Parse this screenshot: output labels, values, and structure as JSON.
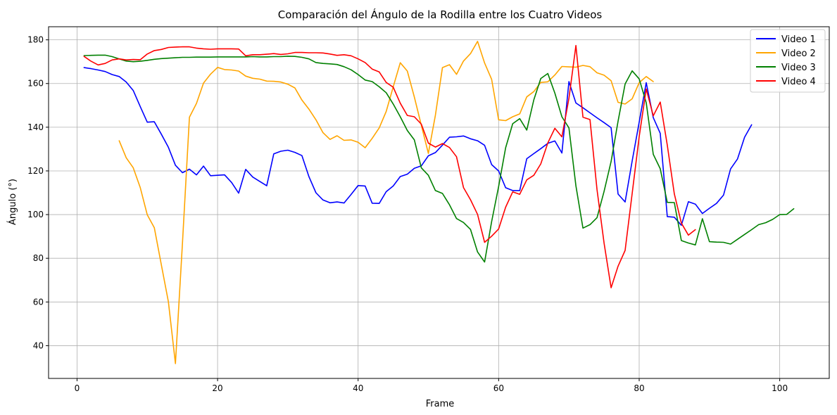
{
  "chart_data": {
    "type": "line",
    "title": "Comparación del Ángulo de la Rodilla entre los Cuatro Videos",
    "xlabel": "Frame",
    "ylabel": "Ángulo (°)",
    "xlim": [
      -4.05,
      107.05
    ],
    "ylim": [
      25,
      186
    ],
    "xticks": [
      "0",
      "20",
      "40",
      "60",
      "80",
      "100"
    ],
    "yticks": [
      "40",
      "60",
      "80",
      "100",
      "120",
      "140",
      "160",
      "180"
    ],
    "grid": true,
    "legend": "top-right",
    "series": [
      {
        "name": "Video 1",
        "color": "#0000ff",
        "x": [
          1,
          2,
          3,
          4,
          5,
          6,
          7,
          8,
          9,
          10,
          11,
          12,
          13,
          14,
          15,
          16,
          17,
          18,
          19,
          20,
          21,
          22,
          23,
          24,
          25,
          26,
          27,
          28,
          29,
          30,
          31,
          32,
          33,
          34,
          35,
          36,
          37,
          38,
          39,
          40,
          41,
          42,
          43,
          44,
          45,
          46,
          47,
          48,
          49,
          50,
          51,
          52,
          53,
          54,
          55,
          56,
          57,
          58,
          59,
          60,
          61,
          62,
          63,
          64,
          65,
          66,
          67,
          68,
          69,
          70,
          71,
          72,
          73,
          74,
          75,
          76,
          77,
          78,
          79,
          80,
          81,
          82,
          83,
          84,
          85,
          86,
          87,
          88,
          89,
          90,
          91,
          92,
          93,
          94,
          95,
          96
        ],
        "y": [
          167.3,
          166.8,
          166.2,
          165.5,
          164.1,
          163.2,
          160.7,
          156.8,
          149.4,
          142.3,
          142.5,
          136.8,
          130.8,
          122.6,
          119.2,
          120.8,
          118.2,
          122.2,
          117.8,
          118,
          118.2,
          114.7,
          109.8,
          120.7,
          117.2,
          115.2,
          113.2,
          127.8,
          129,
          129.5,
          128.5,
          127,
          117.4,
          110,
          106.7,
          105.4,
          105.8,
          105.3,
          109.2,
          113.3,
          113.1,
          105.2,
          105.1,
          110.5,
          113.1,
          117.4,
          118.5,
          121.2,
          122.3,
          126.9,
          128.4,
          131.8,
          135.4,
          135.6,
          136,
          134.7,
          133.8,
          131.7,
          122.9,
          120,
          112.3,
          111,
          111,
          125.6,
          127.9,
          130.2,
          132.6,
          133.7,
          128.2,
          160.9,
          151.1,
          148.9,
          146.6,
          144.3,
          142.1,
          139.8,
          109.4,
          105.8,
          124.5,
          142.3,
          160.4,
          144.4,
          137.2,
          99.1,
          98.8,
          95.1,
          105.9,
          104.8,
          100.5,
          102.9,
          105.1,
          108.9,
          120.9,
          125.5,
          135.4,
          141.1
        ]
      },
      {
        "name": "Video 2",
        "color": "#ffa500",
        "x": [
          6,
          7,
          8,
          9,
          10,
          11,
          12,
          13,
          14,
          15,
          16,
          17,
          18,
          19,
          20,
          21,
          22,
          23,
          24,
          25,
          26,
          27,
          28,
          29,
          30,
          31,
          32,
          33,
          34,
          35,
          36,
          37,
          38,
          39,
          40,
          41,
          42,
          43,
          44,
          45,
          46,
          47,
          48,
          49,
          50,
          51,
          52,
          53,
          54,
          55,
          56,
          57,
          58,
          59,
          60,
          61,
          62,
          63,
          64,
          65,
          66,
          67,
          68,
          69,
          70,
          71,
          72,
          73,
          74,
          75,
          76,
          77,
          78,
          79,
          80,
          81,
          82
        ],
        "y": [
          133.8,
          126,
          121.4,
          112.3,
          99.9,
          94,
          77,
          60.1,
          31.8,
          87,
          144.6,
          150.9,
          160.2,
          164.3,
          167.4,
          166.4,
          166.2,
          165.7,
          163.4,
          162.4,
          162,
          161.1,
          161,
          160.7,
          159.7,
          158,
          152.4,
          148.3,
          143.4,
          137.5,
          134.4,
          136.1,
          134,
          134.2,
          133.1,
          130.6,
          134.9,
          139.7,
          147.2,
          158.5,
          169.5,
          165.7,
          153.8,
          140.9,
          128,
          145.5,
          167.3,
          168.6,
          164.2,
          170.3,
          173.7,
          179.3,
          169.4,
          161.9,
          143.4,
          143,
          144.8,
          146.1,
          153.9,
          156.3,
          160.5,
          160.8,
          163.9,
          167.8,
          167.6,
          167.5,
          168.3,
          167.7,
          164.9,
          163.8,
          161.3,
          151.4,
          150.6,
          153,
          160.4,
          163.2,
          160.9
        ]
      },
      {
        "name": "Video 3",
        "color": "#008000",
        "x": [
          1,
          2,
          3,
          4,
          5,
          6,
          7,
          8,
          9,
          10,
          11,
          12,
          13,
          14,
          15,
          16,
          17,
          18,
          19,
          20,
          21,
          22,
          23,
          24,
          25,
          26,
          27,
          28,
          29,
          30,
          31,
          32,
          33,
          34,
          35,
          36,
          37,
          38,
          39,
          40,
          41,
          42,
          43,
          44,
          45,
          46,
          47,
          48,
          49,
          50,
          51,
          52,
          53,
          54,
          55,
          56,
          57,
          58,
          59,
          60,
          61,
          62,
          63,
          64,
          65,
          66,
          67,
          68,
          69,
          70,
          71,
          72,
          73,
          74,
          75,
          76,
          77,
          78,
          79,
          80,
          81,
          82,
          83,
          84,
          85,
          86,
          87,
          88,
          89,
          90,
          91,
          92,
          93,
          94,
          95,
          96,
          97,
          98,
          99,
          100,
          101,
          102
        ],
        "y": [
          172.8,
          172.9,
          173,
          173,
          172.3,
          171.3,
          170.3,
          170,
          170.2,
          170.6,
          171.1,
          171.4,
          171.6,
          171.8,
          172,
          172,
          172.1,
          172.1,
          172.1,
          172.2,
          172.2,
          172.2,
          172.2,
          172.2,
          172.3,
          172.2,
          172.2,
          172.3,
          172.3,
          172.5,
          172.4,
          172,
          171.3,
          169.6,
          169.2,
          169,
          168.7,
          167.7,
          166.3,
          164.1,
          161.6,
          160.9,
          158.5,
          155.8,
          150.6,
          144.8,
          138.5,
          134.2,
          121.4,
          118,
          111,
          109.7,
          104.5,
          98.2,
          96.4,
          93.2,
          82.9,
          78.3,
          96.8,
          112.8,
          130.6,
          141.6,
          143.9,
          138.7,
          152.5,
          162.3,
          164.6,
          155.6,
          144.8,
          139.7,
          113.2,
          93.8,
          95.4,
          98.6,
          110.6,
          124.3,
          142.8,
          159.8,
          165.8,
          162.1,
          151.2,
          127.6,
          121,
          105.6,
          105.5,
          88.1,
          87,
          86.1,
          98.1,
          87.6,
          87.4,
          87.3,
          86.5,
          88.7,
          90.9,
          93.1,
          95.4,
          96.3,
          97.8,
          100,
          100.1,
          102.7
        ]
      },
      {
        "name": "Video 4",
        "color": "#ff0000",
        "x": [
          1,
          2,
          3,
          4,
          5,
          6,
          7,
          8,
          9,
          10,
          11,
          12,
          13,
          14,
          15,
          16,
          17,
          18,
          19,
          20,
          21,
          22,
          23,
          24,
          25,
          26,
          27,
          28,
          29,
          30,
          31,
          32,
          33,
          34,
          35,
          36,
          37,
          38,
          39,
          40,
          41,
          42,
          43,
          44,
          45,
          46,
          47,
          48,
          49,
          50,
          51,
          52,
          53,
          54,
          55,
          56,
          57,
          58,
          59,
          60,
          61,
          62,
          63,
          64,
          65,
          66,
          67,
          68,
          69,
          70,
          71,
          72,
          73,
          74,
          75,
          76,
          77,
          78,
          79,
          80,
          81,
          82,
          83,
          84,
          85,
          86,
          87,
          88
        ],
        "y": [
          172.4,
          170.2,
          168.5,
          169.2,
          170.8,
          171.3,
          170.8,
          171,
          170.9,
          173.5,
          175.1,
          175.6,
          176.5,
          176.7,
          176.8,
          176.8,
          176.2,
          175.9,
          175.7,
          175.9,
          175.9,
          175.9,
          175.8,
          172.7,
          173.2,
          173.2,
          173.4,
          173.7,
          173.3,
          173.6,
          174.2,
          174.2,
          174.1,
          174.1,
          174,
          173.5,
          172.9,
          173.2,
          172.7,
          171.3,
          169.6,
          166.6,
          165.3,
          160.5,
          158.3,
          151,
          145.4,
          144.8,
          141.4,
          132.7,
          130.9,
          132.5,
          130.7,
          126.5,
          112.4,
          106.8,
          100.1,
          87.3,
          90.1,
          93.4,
          103.4,
          110.4,
          109.3,
          115.9,
          118,
          123.2,
          132.8,
          139.5,
          135.6,
          153.2,
          177.4,
          144.6,
          143.5,
          111.4,
          87,
          66.5,
          76.4,
          83.6,
          109.6,
          135.7,
          157.5,
          145.2,
          151.5,
          131.8,
          109.5,
          96.1,
          90.6,
          93.1
        ]
      }
    ]
  }
}
